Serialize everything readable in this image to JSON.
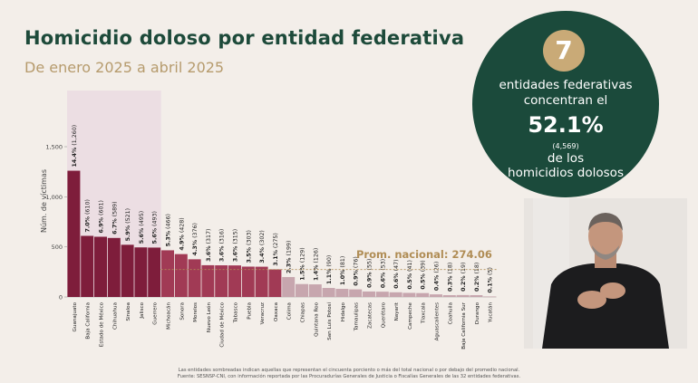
{
  "header": {
    "title": "Homicidio doloso por entidad federativa",
    "subtitle": "De enero 2025 a abril 2025"
  },
  "stat": {
    "number": "7",
    "line1": "entidades federativas",
    "line2": "concentran el",
    "percent": "52.1%",
    "count": "(4,569)",
    "line3": "de los",
    "line4": "homicidios dolosos"
  },
  "footnote": {
    "line1": "Las entidades sombreadas indican aquellas que representan el cincuenta porciento o más del total nacional o por debajo del promedio nacional.",
    "line2": "Fuente: SESNSP-CNI, con información reportada por las Procuradurías Generales de Justicia o Fiscalías Generales de las 32 entidades federativas."
  },
  "colors": {
    "highlight_bar": "#7e1d3b",
    "normal_bar": "#a13a55",
    "low_bar": "#c7a6ae",
    "highlight_band": "#ecdee3",
    "title": "#1d4a3a",
    "accent_gold": "#c9aa77"
  },
  "chart_data": {
    "type": "bar",
    "title": "",
    "ylabel": "Núm. de víctimas",
    "ylim": [
      0,
      1500
    ],
    "yticks": [
      0,
      500,
      1000,
      1500
    ],
    "ytick_labels": [
      "0",
      "500",
      "1,000",
      "1,500"
    ],
    "average_label": "Prom. nacional: 274.06",
    "average_value": 274.06,
    "highlight_count": 7,
    "categories": [
      "Guanajuato",
      "Baja California",
      "Estado de México",
      "Chihuahua",
      "Sinaloa",
      "Jalisco",
      "Guerrero",
      "Michoacán",
      "Sonora",
      "Morelos",
      "Nuevo León",
      "Ciudad de México",
      "Tabasco",
      "Puebla",
      "Veracruz",
      "Oaxaca",
      "Colima",
      "Chiapas",
      "Quintana Roo",
      "San Luis Potosí",
      "Hidalgo",
      "Tamaulipas",
      "Zacatecas",
      "Querétaro",
      "Nayarit",
      "Campeche",
      "Tlaxcala",
      "Aguascalientes",
      "Coahuila",
      "Baja California Sur",
      "Durango",
      "Yucatán"
    ],
    "values": [
      1260,
      610,
      601,
      589,
      521,
      495,
      493,
      466,
      428,
      376,
      317,
      316,
      315,
      303,
      302,
      275,
      199,
      129,
      126,
      90,
      81,
      76,
      55,
      53,
      47,
      41,
      39,
      26,
      18,
      19,
      18,
      5
    ],
    "pct_labels": [
      "14.4%",
      "7.0%",
      "6.9%",
      "6.7%",
      "5.9%",
      "5.6%",
      "5.6%",
      "5.3%",
      "4.9%",
      "4.3%",
      "3.6%",
      "3.6%",
      "3.6%",
      "3.5%",
      "3.4%",
      "3.1%",
      "2.3%",
      "1.5%",
      "1.4%",
      "1.1%",
      "1.0%",
      "0.9%",
      "0.9%",
      "0.6%",
      "0.6%",
      "0.5%",
      "0.5%",
      "0.4%",
      "0.3%",
      "0.2%",
      "0.2%",
      "0.1%"
    ],
    "value_labels": [
      "(1,260)",
      "(610)",
      "(601)",
      "(589)",
      "(521)",
      "(495)",
      "(493)",
      "(466)",
      "(428)",
      "(376)",
      "(317)",
      "(316)",
      "(315)",
      "(303)",
      "(302)",
      "(275)",
      "(199)",
      "(129)",
      "(126)",
      "(90)",
      "(81)",
      "(76)",
      "(55)",
      "(53)",
      "(47)",
      "(41)",
      "(39)",
      "(26)",
      "(18)",
      "(19)",
      "(18)",
      "(5)"
    ]
  }
}
